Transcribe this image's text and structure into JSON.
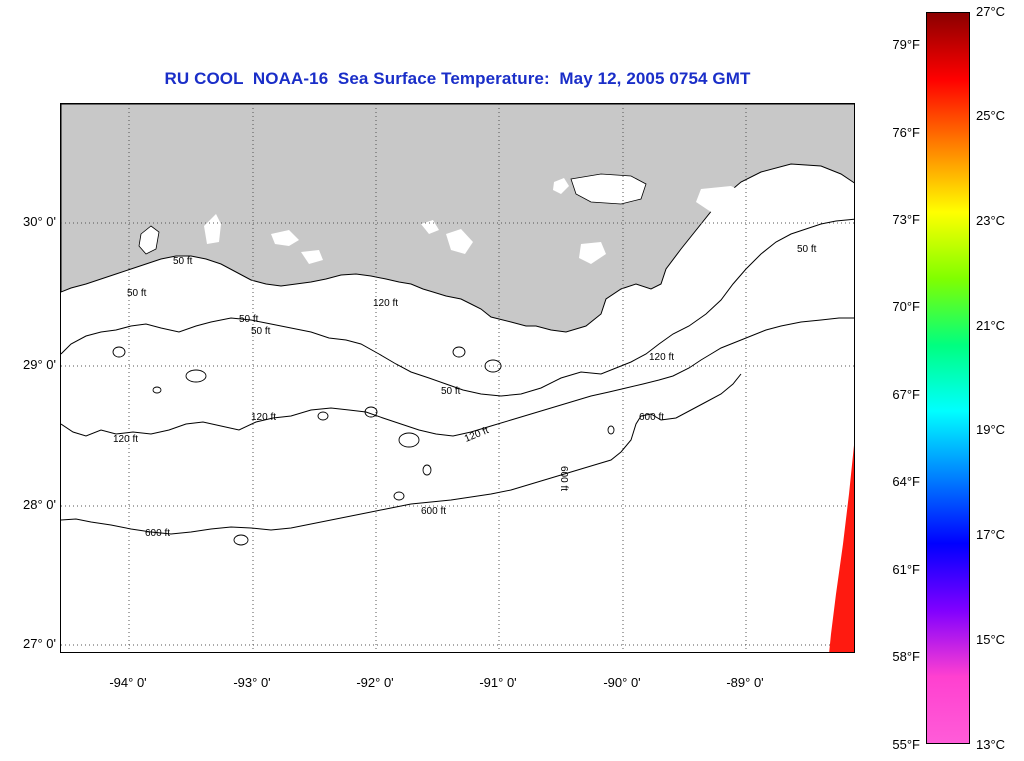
{
  "title": "RU COOL  NOAA-16  Sea Surface Temperature:  May 12, 2005 0754 GMT",
  "axes": {
    "latitude_labels": [
      "30° 0'",
      "29° 0'",
      "28° 0'",
      "27° 0'"
    ],
    "longitude_labels": [
      "-94° 0'",
      "-93° 0'",
      "-92° 0'",
      "-91° 0'",
      "-90° 0'",
      "-89° 0'"
    ],
    "grid": "dotted"
  },
  "contours": {
    "label_50": "50 ft",
    "label_120": "120 ft",
    "label_600": "600 ft",
    "label_120_rotated": "120 ft",
    "label_600_rotated": "600 ft"
  },
  "colorbar": {
    "fahrenheit": [
      "79°F",
      "76°F",
      "73°F",
      "70°F",
      "67°F",
      "64°F",
      "61°F",
      "58°F",
      "55°F"
    ],
    "celsius": [
      "27°C",
      "25°C",
      "23°C",
      "21°C",
      "19°C",
      "17°C",
      "15°C",
      "13°C"
    ],
    "colors": [
      "#8b0000",
      "#ff0000",
      "#ff8000",
      "#ffff00",
      "#80ff00",
      "#00ff80",
      "#00ffff",
      "#0080ff",
      "#0000ff",
      "#8000ff",
      "#ff40d0",
      "#ff5cd8"
    ]
  },
  "colors": {
    "land": "#c8c8c8",
    "water": "#ffffff",
    "title": "#1a2ec8",
    "sst_patch": "#ff1a10"
  }
}
